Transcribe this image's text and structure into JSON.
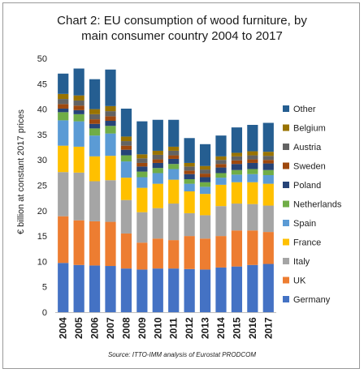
{
  "chart_data": {
    "type": "bar",
    "stacked": true,
    "title_line1": "Chart 2: EU consumption of wood furniture, by",
    "title_line2": "main consumer country 2004 to 2017",
    "ylabel": "€ billion at constant 2017 prices",
    "xlabel": "",
    "ylim": [
      0,
      50
    ],
    "yticks": [
      0,
      5,
      10,
      15,
      20,
      25,
      30,
      35,
      40,
      45,
      50
    ],
    "grid": false,
    "legend_position": "right",
    "source": "Source: ITTO-IMM analysis of Eurostat PRODCOM",
    "categories": [
      "2004",
      "2005",
      "2006",
      "2007",
      "2008",
      "2009",
      "2010",
      "2011",
      "2012",
      "2013",
      "2014",
      "2015",
      "2016",
      "2017"
    ],
    "series": [
      {
        "name": "Germany",
        "color": "#4472c4",
        "values": [
          9.7,
          9.3,
          9.2,
          9.1,
          8.6,
          8.4,
          8.6,
          8.6,
          8.5,
          8.4,
          8.8,
          9.0,
          9.3,
          9.5
        ]
      },
      {
        "name": "UK",
        "color": "#ed7d31",
        "values": [
          9.2,
          8.8,
          8.7,
          8.7,
          6.9,
          5.3,
          5.9,
          5.6,
          6.5,
          6.1,
          6.2,
          7.1,
          6.8,
          6.3
        ]
      },
      {
        "name": "Italy",
        "color": "#a5a5a5",
        "values": [
          8.7,
          9.4,
          7.9,
          8.2,
          6.6,
          6.0,
          6.0,
          7.2,
          4.5,
          4.6,
          5.9,
          5.3,
          5.2,
          5.2
        ]
      },
      {
        "name": "France",
        "color": "#ffc000",
        "values": [
          5.2,
          5.1,
          4.9,
          4.8,
          4.4,
          4.8,
          4.8,
          4.7,
          4.3,
          4.2,
          4.2,
          4.2,
          4.3,
          4.3
        ]
      },
      {
        "name": "Spain",
        "color": "#5b9bd5",
        "values": [
          5.0,
          5.0,
          4.1,
          4.4,
          3.2,
          2.1,
          2.1,
          2.1,
          1.5,
          1.4,
          1.4,
          1.5,
          1.6,
          1.7
        ]
      },
      {
        "name": "Netherlands",
        "color": "#70ad47",
        "values": [
          1.6,
          1.4,
          1.4,
          1.5,
          1.2,
          1.1,
          1.0,
          1.0,
          0.9,
          0.9,
          0.9,
          0.9,
          1.0,
          1.0
        ]
      },
      {
        "name": "Poland",
        "color": "#264478",
        "values": [
          0.7,
          0.8,
          0.9,
          1.0,
          1.1,
          1.0,
          1.0,
          1.0,
          1.0,
          1.0,
          1.1,
          1.2,
          1.2,
          1.3
        ]
      },
      {
        "name": "Sweden",
        "color": "#9e480e",
        "values": [
          0.9,
          0.9,
          0.9,
          0.9,
          0.8,
          0.7,
          0.7,
          0.7,
          0.7,
          0.7,
          0.7,
          0.7,
          0.7,
          0.7
        ]
      },
      {
        "name": "Austria",
        "color": "#636363",
        "values": [
          1.0,
          1.0,
          1.0,
          1.0,
          0.9,
          0.9,
          0.9,
          0.9,
          0.8,
          0.8,
          0.8,
          0.8,
          0.8,
          0.8
        ]
      },
      {
        "name": "Belgium",
        "color": "#997300",
        "values": [
          1.0,
          1.0,
          1.0,
          1.0,
          0.9,
          0.8,
          0.8,
          0.8,
          0.7,
          0.7,
          0.7,
          0.7,
          0.8,
          0.8
        ]
      },
      {
        "name": "Other",
        "color": "#255e91",
        "values": [
          4.0,
          5.3,
          5.9,
          7.2,
          5.5,
          6.5,
          6.1,
          5.3,
          4.9,
          4.3,
          4.1,
          5.0,
          5.2,
          5.7
        ]
      }
    ]
  }
}
